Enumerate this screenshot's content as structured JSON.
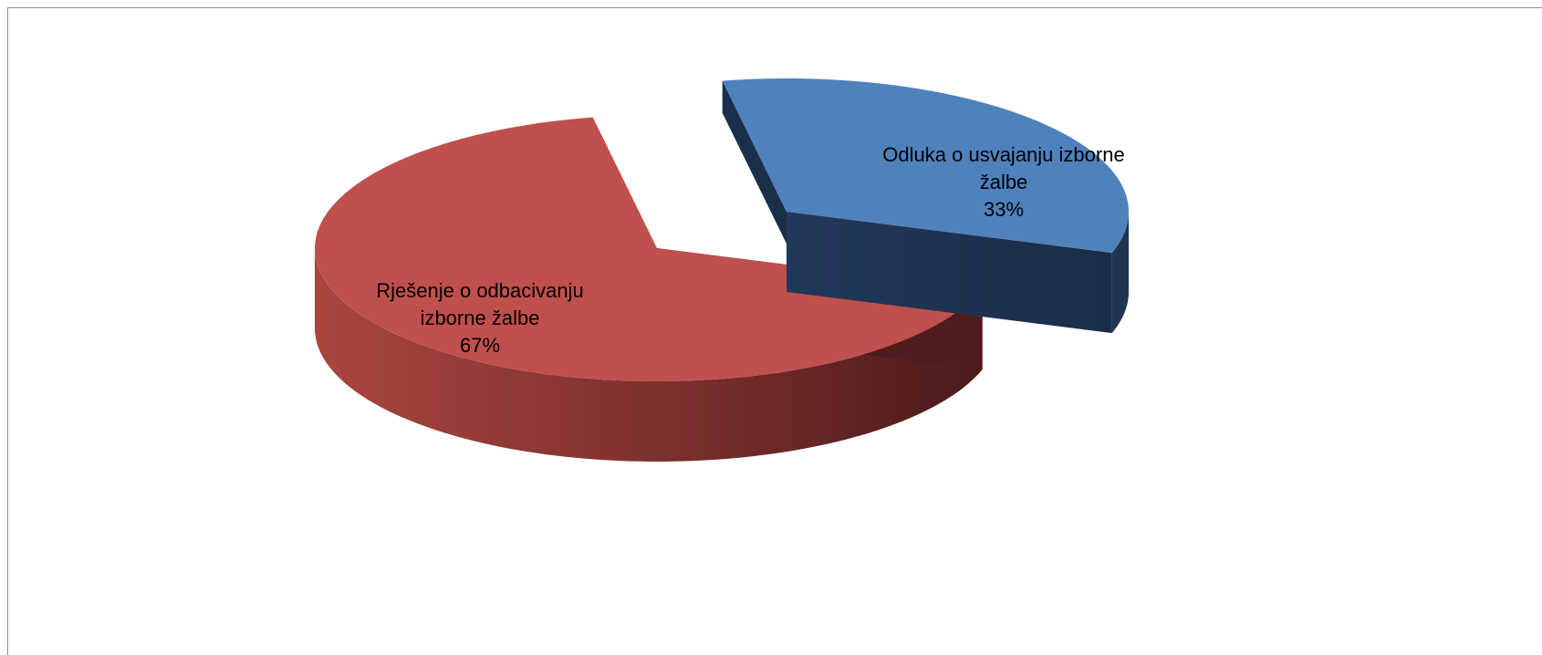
{
  "chart_data": {
    "type": "pie",
    "three_d": true,
    "exploded": true,
    "title": "",
    "slices": [
      {
        "label_lines": [
          "Odluka o usvajanju izborne",
          "žalbe"
        ],
        "percent_label": "33%",
        "value": 33,
        "color": "#4f81bd",
        "side_color": "#1f3450"
      },
      {
        "label_lines": [
          "Rješenje o odbacivanju",
          "izborne žalbe"
        ],
        "percent_label": "67%",
        "value": 67,
        "color": "#c0504d",
        "side_color": "#7a2a26"
      }
    ],
    "legend": "none"
  }
}
